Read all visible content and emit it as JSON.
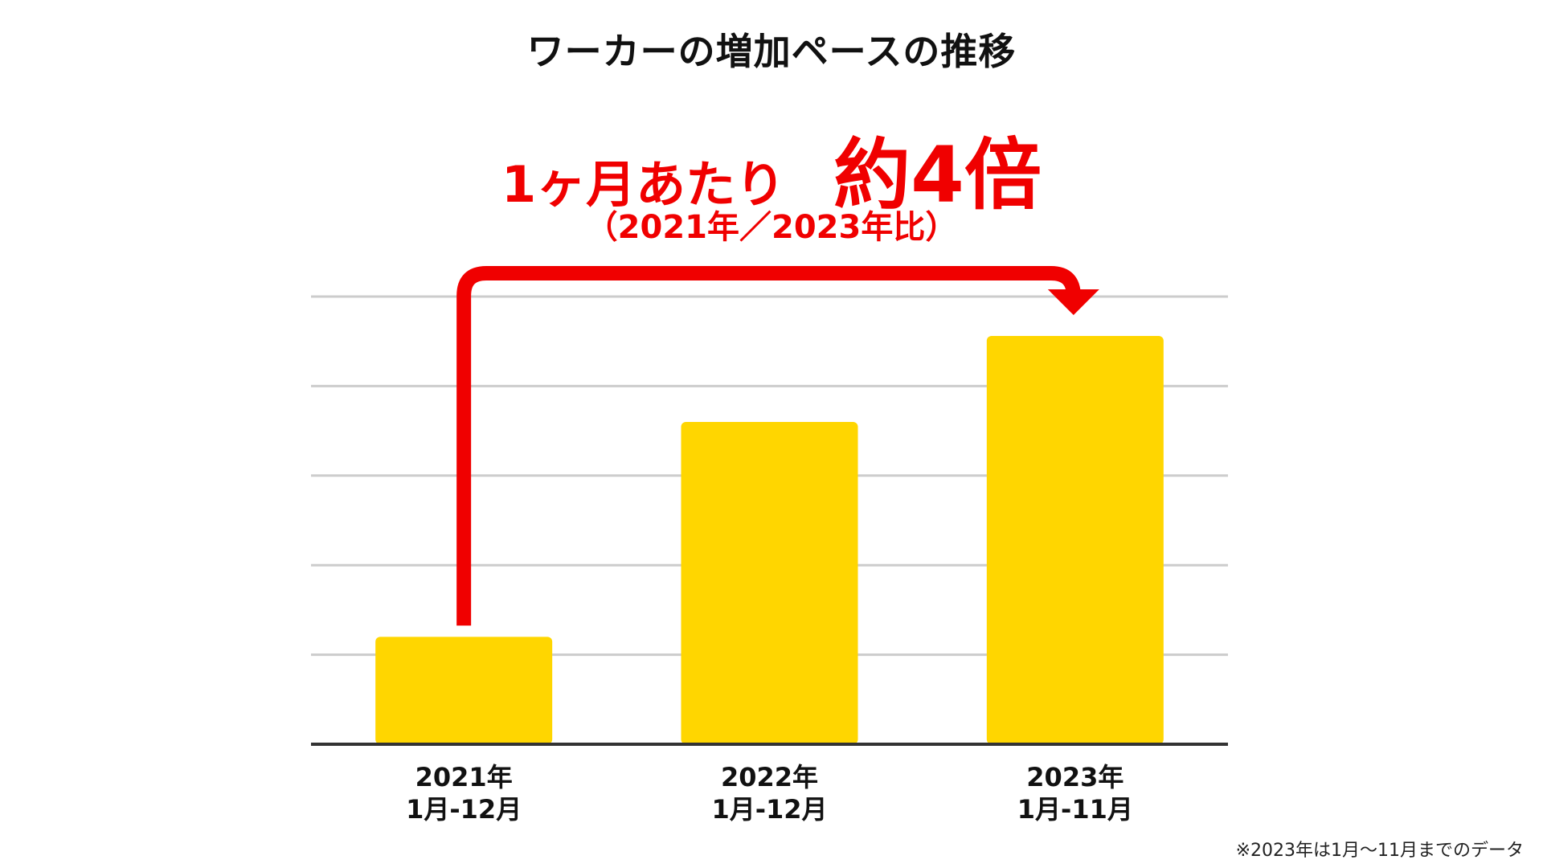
{
  "title": "ワーカーの増加ペースの推移",
  "headline": {
    "lead": "1ヶ月あたり",
    "value": "約4倍"
  },
  "subheadline": "（2021年／2023年比）",
  "footnote": "※2023年は1月〜11月までのデータ",
  "colors": {
    "bar": "#FFD600",
    "accent": "#F00000",
    "grid": "#CCCCCC",
    "axis": "#333333"
  },
  "chart_data": {
    "type": "bar",
    "categories": [
      [
        "2021年",
        "1月-12月"
      ],
      [
        "2022年",
        "1月-12月"
      ],
      [
        "2023年",
        "1月-11月"
      ]
    ],
    "values": [
      1.2,
      3.6,
      4.56
    ],
    "ylim": [
      0,
      5
    ],
    "grid": true,
    "annotation": {
      "type": "arrow",
      "from_category": 0,
      "to_category": 2,
      "text": "約4倍"
    }
  }
}
